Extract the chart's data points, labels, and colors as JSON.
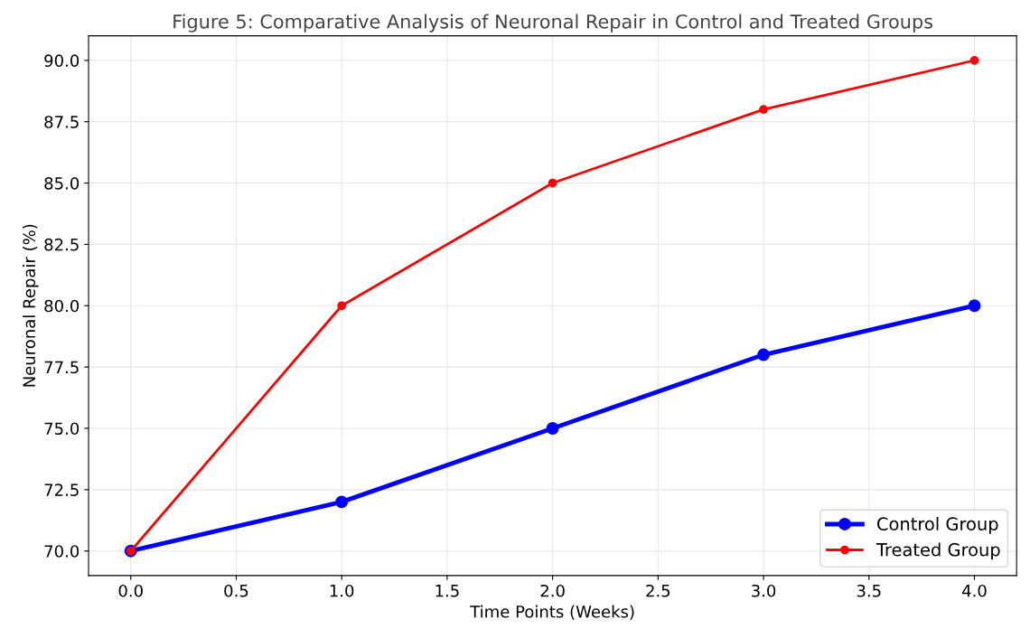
{
  "chart_data": {
    "type": "line",
    "title": "Figure 5: Comparative Analysis of Neuronal Repair in Control and Treated Groups",
    "xlabel": "Time Points (Weeks)",
    "ylabel": "Neuronal Repair (%)",
    "x": [
      0,
      1,
      2,
      3,
      4
    ],
    "series": [
      {
        "name": "Control Group",
        "color": "#0000ff",
        "values": [
          70,
          72,
          75,
          78,
          80
        ]
      },
      {
        "name": "Treated Group",
        "color": "#ff0000",
        "values": [
          70,
          80,
          85,
          88,
          90
        ]
      }
    ],
    "xlim": [
      -0.2,
      4.2
    ],
    "xticks": [
      {
        "value": 0,
        "label": "0.0"
      },
      {
        "value": 0.5,
        "label": "0.5"
      },
      {
        "value": 1,
        "label": "1.0"
      },
      {
        "value": 1.5,
        "label": "1.5"
      },
      {
        "value": 2,
        "label": "2.0"
      },
      {
        "value": 2.5,
        "label": "2.5"
      },
      {
        "value": 3,
        "label": "3.0"
      },
      {
        "value": 3.5,
        "label": "3.5"
      },
      {
        "value": 4,
        "label": "4.0"
      }
    ],
    "ylim": [
      69,
      91
    ],
    "yticks": [
      {
        "value": 70,
        "label": "70.0"
      },
      {
        "value": 72.5,
        "label": "72.5"
      },
      {
        "value": 75,
        "label": "75.0"
      },
      {
        "value": 77.5,
        "label": "77.5"
      },
      {
        "value": 80,
        "label": "80.0"
      },
      {
        "value": 82.5,
        "label": "82.5"
      },
      {
        "value": 85,
        "label": "85.0"
      },
      {
        "value": 87.5,
        "label": "87.5"
      },
      {
        "value": 90,
        "label": "90.0"
      }
    ],
    "grid": true,
    "legend": "bottom right",
    "marker": "circle",
    "line_style": "solid"
  }
}
